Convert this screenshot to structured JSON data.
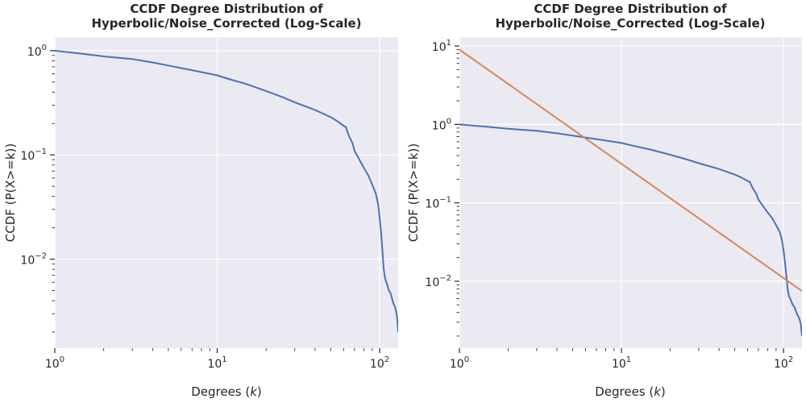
{
  "chart_data": [
    {
      "type": "line",
      "title_lines": [
        "CCDF Degree Distribution of",
        "Hyperbolic/Noise_Corrected (Log-Scale)"
      ],
      "xlabel": "Degrees (k)",
      "ylabel": "CCDF (P(X>=k))",
      "xscale": "log",
      "yscale": "log",
      "xlim": [
        1,
        130
      ],
      "ylim": [
        0.0014,
        1.35
      ],
      "x_ticks": [
        "10^0",
        "10^1",
        "10^2"
      ],
      "y_ticks": [
        "10^0",
        "10^-1",
        "10^-2"
      ],
      "grid": true,
      "series": [
        {
          "color": "#4c72b0",
          "x": [
            1,
            1.5,
            2,
            3,
            4,
            5,
            7,
            10,
            12,
            15,
            20,
            25,
            30,
            40,
            50,
            55,
            60,
            62,
            63,
            65,
            68,
            70,
            75,
            80,
            85,
            90,
            95,
            98,
            100,
            102,
            104,
            106,
            108,
            110,
            112,
            114,
            116,
            118,
            120,
            122,
            124,
            126,
            128,
            130
          ],
          "y": [
            1.0,
            0.93,
            0.88,
            0.83,
            0.77,
            0.72,
            0.65,
            0.58,
            0.53,
            0.48,
            0.41,
            0.36,
            0.32,
            0.27,
            0.23,
            0.21,
            0.19,
            0.185,
            0.17,
            0.15,
            0.13,
            0.11,
            0.09,
            0.075,
            0.064,
            0.052,
            0.042,
            0.033,
            0.025,
            0.018,
            0.012,
            0.008,
            0.0065,
            0.006,
            0.0055,
            0.005,
            0.0048,
            0.0045,
            0.004,
            0.0037,
            0.0035,
            0.0032,
            0.0028,
            0.002
          ]
        }
      ]
    },
    {
      "type": "line",
      "title_lines": [
        "CCDF Degree Distribution of",
        "Hyperbolic/Noise_Corrected (Log-Scale)"
      ],
      "xlabel": "Degrees (k)",
      "ylabel": "CCDF (P(X>=k))",
      "xscale": "log",
      "yscale": "log",
      "xlim": [
        1,
        130
      ],
      "ylim": [
        0.0014,
        13
      ],
      "x_ticks": [
        "10^0",
        "10^1",
        "10^2"
      ],
      "y_ticks": [
        "10^1",
        "10^0",
        "10^-1",
        "10^-2"
      ],
      "grid": true,
      "series": [
        {
          "color": "#4c72b0",
          "x": [
            1,
            1.5,
            2,
            3,
            4,
            5,
            7,
            10,
            12,
            15,
            20,
            25,
            30,
            40,
            50,
            55,
            60,
            62,
            63,
            65,
            68,
            70,
            75,
            80,
            85,
            90,
            95,
            98,
            100,
            102,
            104,
            106,
            108,
            110,
            112,
            114,
            116,
            118,
            120,
            122,
            124,
            126,
            128,
            130
          ],
          "y": [
            1.0,
            0.93,
            0.88,
            0.83,
            0.77,
            0.72,
            0.65,
            0.58,
            0.53,
            0.48,
            0.41,
            0.36,
            0.32,
            0.27,
            0.23,
            0.21,
            0.19,
            0.185,
            0.17,
            0.15,
            0.13,
            0.11,
            0.09,
            0.075,
            0.064,
            0.052,
            0.042,
            0.033,
            0.025,
            0.018,
            0.012,
            0.008,
            0.0065,
            0.006,
            0.0055,
            0.005,
            0.0048,
            0.0045,
            0.004,
            0.0037,
            0.0035,
            0.0032,
            0.0028,
            0.002
          ]
        },
        {
          "color": "#dd8452",
          "x": [
            1,
            130
          ],
          "y": [
            9.0,
            0.0075
          ]
        }
      ]
    }
  ]
}
